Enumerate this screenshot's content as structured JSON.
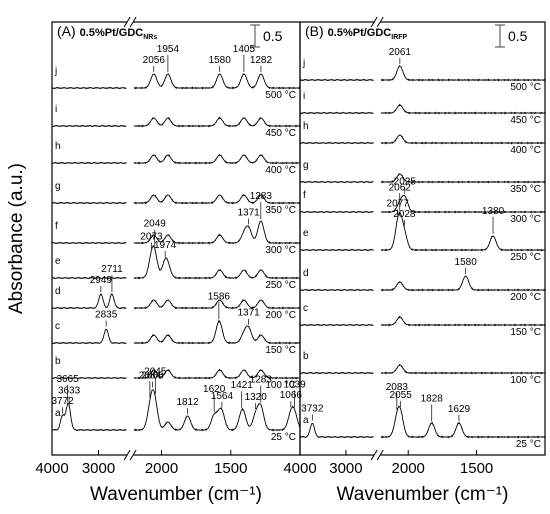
{
  "chart_data": [
    {
      "type": "spectra",
      "panel": "(A)",
      "title": "0.5%Pt/GDC",
      "title_sub": "NRs",
      "scale_bar": 0.5,
      "y_label": "Absorbance (a.u.)",
      "x_label": "Wavenumber (cm⁻¹)",
      "xlim": [
        4000,
        1000
      ],
      "axis_break": [
        2400,
        2200
      ],
      "xticks": [
        4000,
        3000,
        2000,
        1500
      ],
      "color": "#000000",
      "series": [
        {
          "name": "a",
          "label": "25 °C",
          "peaks": [
            3772,
            3665,
            3633,
            2084,
            2065,
            2045,
            1812,
            1620,
            1564,
            1421,
            1320,
            1283,
            1066,
            1039
          ]
        },
        {
          "name": "b",
          "label": "100 °C"
        },
        {
          "name": "c",
          "label": "150 °C",
          "peaks": [
            2835,
            1586,
            1371
          ]
        },
        {
          "name": "d",
          "label": "200 °C",
          "peaks": [
            2949,
            2711
          ]
        },
        {
          "name": "e",
          "label": "250 °C",
          "peaks": [
            2073,
            2049,
            1974
          ]
        },
        {
          "name": "f",
          "label": "300 °C",
          "peaks": [
            1371,
            1283
          ]
        },
        {
          "name": "g",
          "label": "350 °C"
        },
        {
          "name": "h",
          "label": "400 °C"
        },
        {
          "name": "i",
          "label": "450 °C"
        },
        {
          "name": "j",
          "label": "500 °C",
          "peaks": [
            2056,
            1954,
            1580,
            1405,
            1282
          ]
        }
      ]
    },
    {
      "type": "spectra",
      "panel": "(B)",
      "title": "0.5%Pt/GDC",
      "title_sub": "IRFP",
      "scale_bar": 0.5,
      "x_label": "Wavenumber (cm⁻¹)",
      "xlim": [
        4000,
        1000
      ],
      "axis_break": [
        2400,
        2200
      ],
      "xticks": [
        4000,
        3000,
        2000,
        1500
      ],
      "color": "#000000",
      "series": [
        {
          "name": "a",
          "label": "25 °C",
          "peaks": [
            3732,
            2083,
            2055,
            1828,
            1629
          ]
        },
        {
          "name": "b",
          "label": "100 °C"
        },
        {
          "name": "c",
          "label": "150 °C"
        },
        {
          "name": "d",
          "label": "200 °C",
          "peaks": [
            1580
          ]
        },
        {
          "name": "e",
          "label": "250 °C",
          "peaks": [
            2077,
            2062,
            2028,
            1380
          ]
        },
        {
          "name": "f",
          "label": "300 °C",
          "peaks": [
            2025
          ]
        },
        {
          "name": "g",
          "label": "350 °C"
        },
        {
          "name": "h",
          "label": "400 °C"
        },
        {
          "name": "i",
          "label": "450 °C"
        },
        {
          "name": "j",
          "label": "500 °C",
          "peaks": [
            2061
          ]
        }
      ]
    }
  ]
}
